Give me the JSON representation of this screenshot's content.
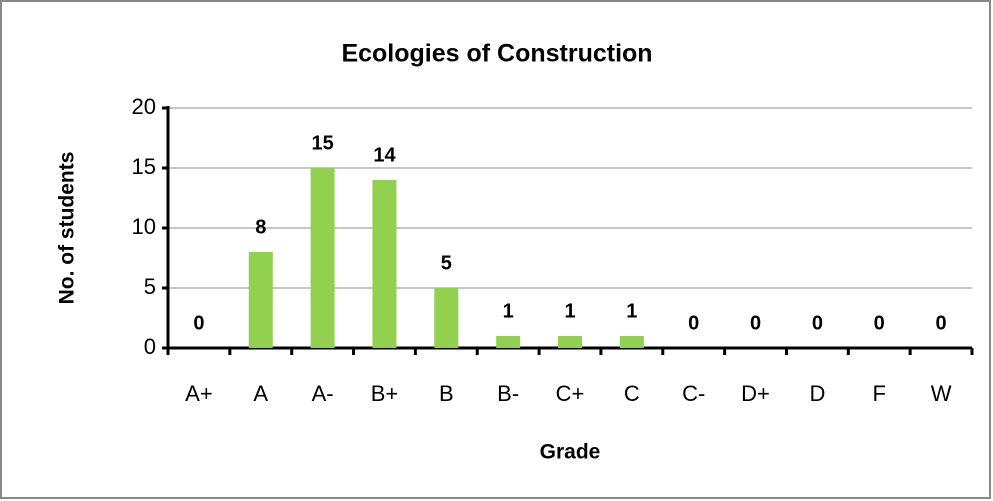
{
  "chart_data": {
    "type": "bar",
    "title": "Ecologies of Construction",
    "x_label": "Grade",
    "y_label": "No. of students",
    "categories": [
      "A+",
      "A",
      "A-",
      "B+",
      "B",
      "B-",
      "C+",
      "C",
      "C-",
      "D+",
      "D",
      "F",
      "W"
    ],
    "values": [
      0,
      8,
      15,
      14,
      5,
      1,
      1,
      1,
      0,
      0,
      0,
      0,
      0
    ],
    "color": "#92d050",
    "ylim": [
      0,
      20
    ],
    "yticks": [
      0,
      5,
      10,
      15,
      20
    ],
    "grid": true
  }
}
